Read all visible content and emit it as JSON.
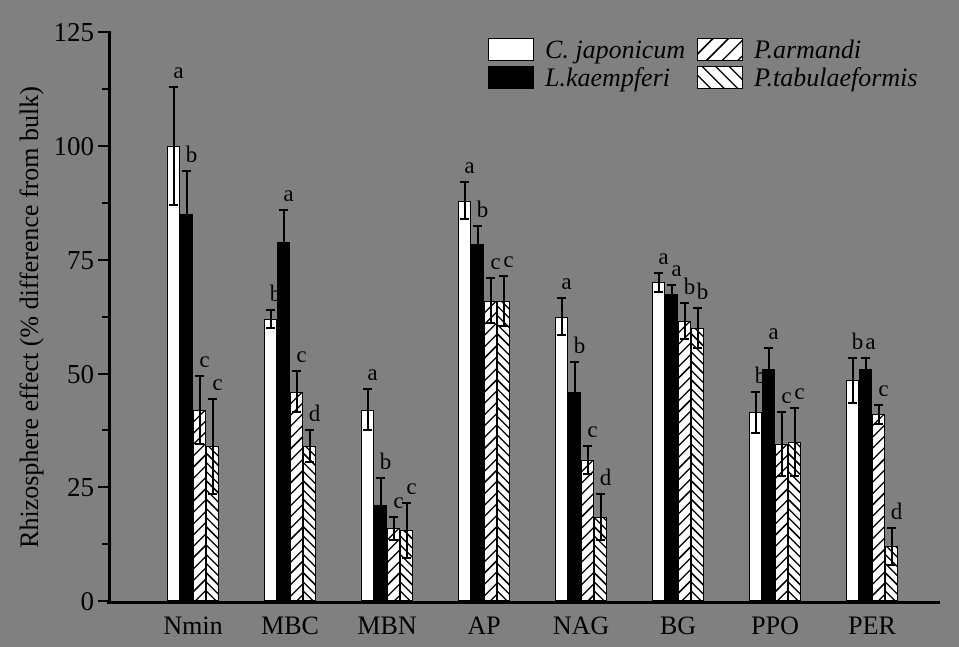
{
  "figure": {
    "background_color": "#808080",
    "axis_color": "#000000",
    "bar_outline_color": "#000000",
    "text_color": "#000000"
  },
  "chart_data": {
    "type": "bar",
    "title": "",
    "xlabel": "",
    "ylabel": "Rhizosphere effect (% difference from bulk)",
    "ylim": [
      0,
      125
    ],
    "yticks": [
      0,
      25,
      50,
      75,
      100,
      125
    ],
    "minor_yticks": [
      12.5,
      37.5,
      62.5,
      87.5,
      112.5
    ],
    "grid": false,
    "error_bars": true,
    "legend_position": "top-center",
    "categories": [
      "Nmin",
      "MBC",
      "MBN",
      "AP",
      "NAG",
      "BG",
      "PPO",
      "PER"
    ],
    "series": [
      {
        "name": "C. japonicum",
        "pattern": "white",
        "values": [
          100,
          62,
          42,
          88,
          62.5,
          70,
          41.5,
          48.5
        ],
        "errors": [
          13,
          2,
          4.5,
          4,
          4,
          2,
          4.5,
          5
        ],
        "letters": [
          "a",
          "b",
          "a",
          "a",
          "a",
          "a",
          "b",
          "b"
        ]
      },
      {
        "name": "L.kaempferi",
        "pattern": "black",
        "values": [
          85,
          79,
          21,
          78.5,
          46,
          67.5,
          51,
          51
        ],
        "errors": [
          9.5,
          7,
          6,
          4,
          6.5,
          2,
          4.5,
          2.5
        ],
        "letters": [
          "b",
          "a",
          "b",
          "b",
          "b",
          "a",
          "a",
          "a"
        ]
      },
      {
        "name": "P.armandi",
        "pattern": "diagonal-forward",
        "values": [
          42,
          46,
          16,
          66,
          31,
          61.5,
          34.5,
          41
        ],
        "errors": [
          7.5,
          4.5,
          2.5,
          5,
          3,
          4,
          7,
          2
        ],
        "letters": [
          "c",
          "c",
          "c",
          "c",
          "c",
          "b",
          "c",
          "c"
        ]
      },
      {
        "name": "P.tabulaeformis",
        "pattern": "diagonal-back",
        "values": [
          34,
          34,
          15.5,
          66,
          18.5,
          60,
          35,
          12
        ],
        "errors": [
          10.5,
          3.5,
          6,
          5.5,
          5,
          4.5,
          7.5,
          4
        ],
        "letters": [
          "c",
          "d",
          "c",
          "c",
          "d",
          "b",
          "c",
          "d"
        ]
      }
    ]
  }
}
